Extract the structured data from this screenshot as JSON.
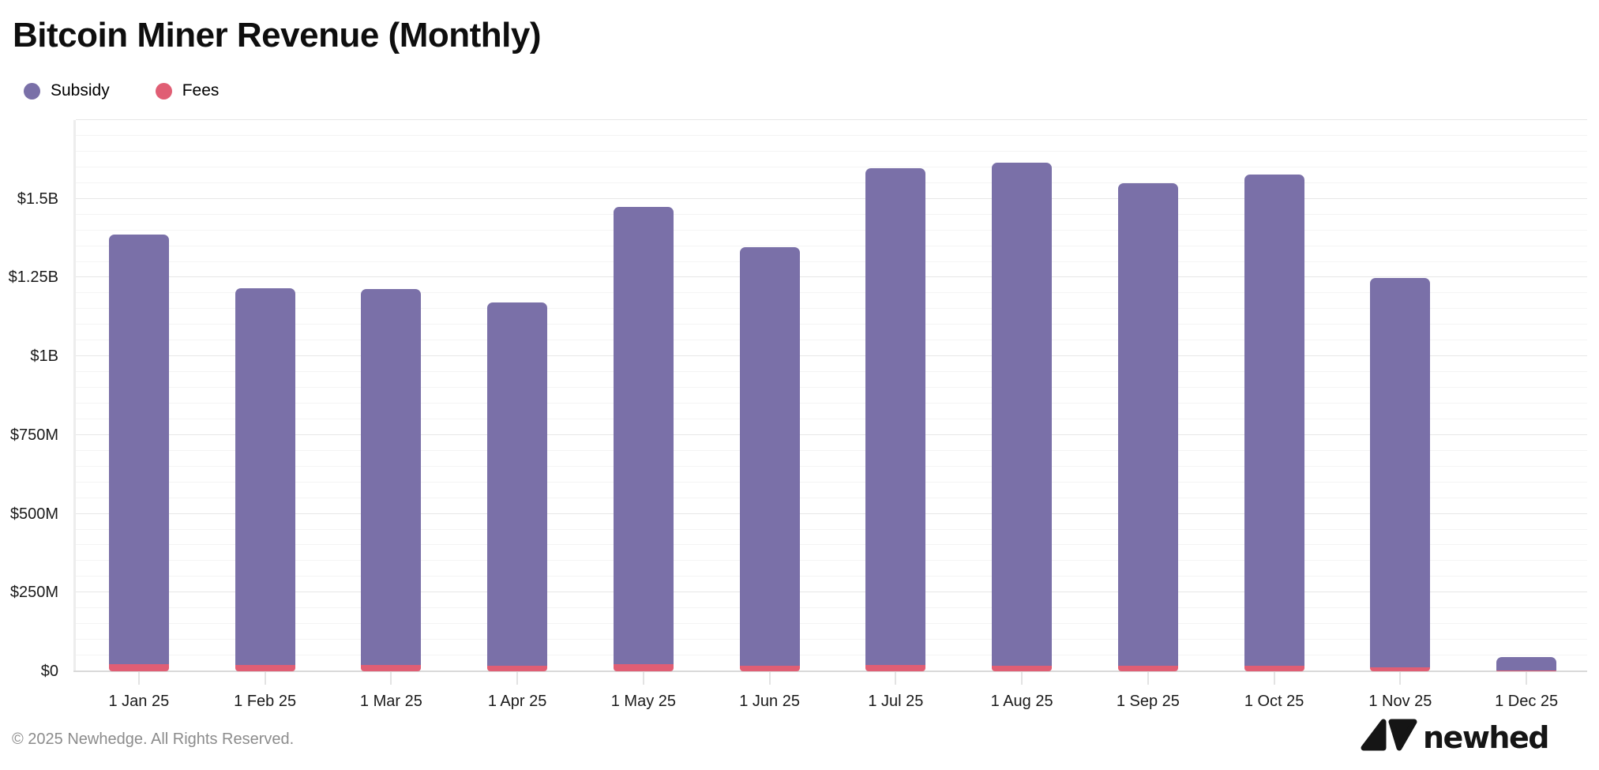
{
  "header": {
    "title": "Bitcoin Miner Revenue (Monthly)"
  },
  "legend": {
    "items": [
      {
        "label": "Subsidy",
        "color": "#7A70A8"
      },
      {
        "label": "Fees",
        "color": "#E05E74"
      }
    ]
  },
  "chart_data": {
    "type": "bar",
    "stacked": true,
    "title": "Bitcoin Miner Revenue (Monthly)",
    "xlabel": "",
    "ylabel": "",
    "unit": "USD millions",
    "categories": [
      "1 Jan 25",
      "1 Feb 25",
      "1 Mar 25",
      "1 Apr 25",
      "1 May 25",
      "1 Jun 25",
      "1 Jul 25",
      "1 Aug 25",
      "1 Sep 25",
      "1 Oct 25",
      "1 Nov 25",
      "1 Dec 25"
    ],
    "series": [
      {
        "name": "Fees",
        "color": "#E05E74",
        "values": [
          22,
          20,
          20,
          18,
          22,
          18,
          20,
          18,
          18,
          17,
          12,
          2
        ]
      },
      {
        "name": "Subsidy",
        "color": "#7A70A8",
        "values": [
          1365,
          1196,
          1194,
          1153,
          1452,
          1329,
          1578,
          1597,
          1532,
          1561,
          1237,
          43
        ]
      }
    ],
    "totals_approx_millions": [
      1387,
      1216,
      1214,
      1171,
      1474,
      1347,
      1598,
      1615,
      1550,
      1578,
      1249,
      45
    ],
    "ylim": [
      0,
      1750
    ],
    "minor_step": 50,
    "major_step": 250,
    "yticks": [
      {
        "value": 0,
        "label": "$0"
      },
      {
        "value": 250,
        "label": "$250M"
      },
      {
        "value": 500,
        "label": "$500M"
      },
      {
        "value": 750,
        "label": "$750M"
      },
      {
        "value": 1000,
        "label": "$1B"
      },
      {
        "value": 1250,
        "label": "$1.25B"
      },
      {
        "value": 1500,
        "label": "$1.5B"
      }
    ],
    "grid": "horizontal, minor every $50M, major every $250M",
    "legend_position": "top-left"
  },
  "footer": {
    "copyright": "© 2025 Newhedge. All Rights Reserved.",
    "brand": "newhedge"
  }
}
